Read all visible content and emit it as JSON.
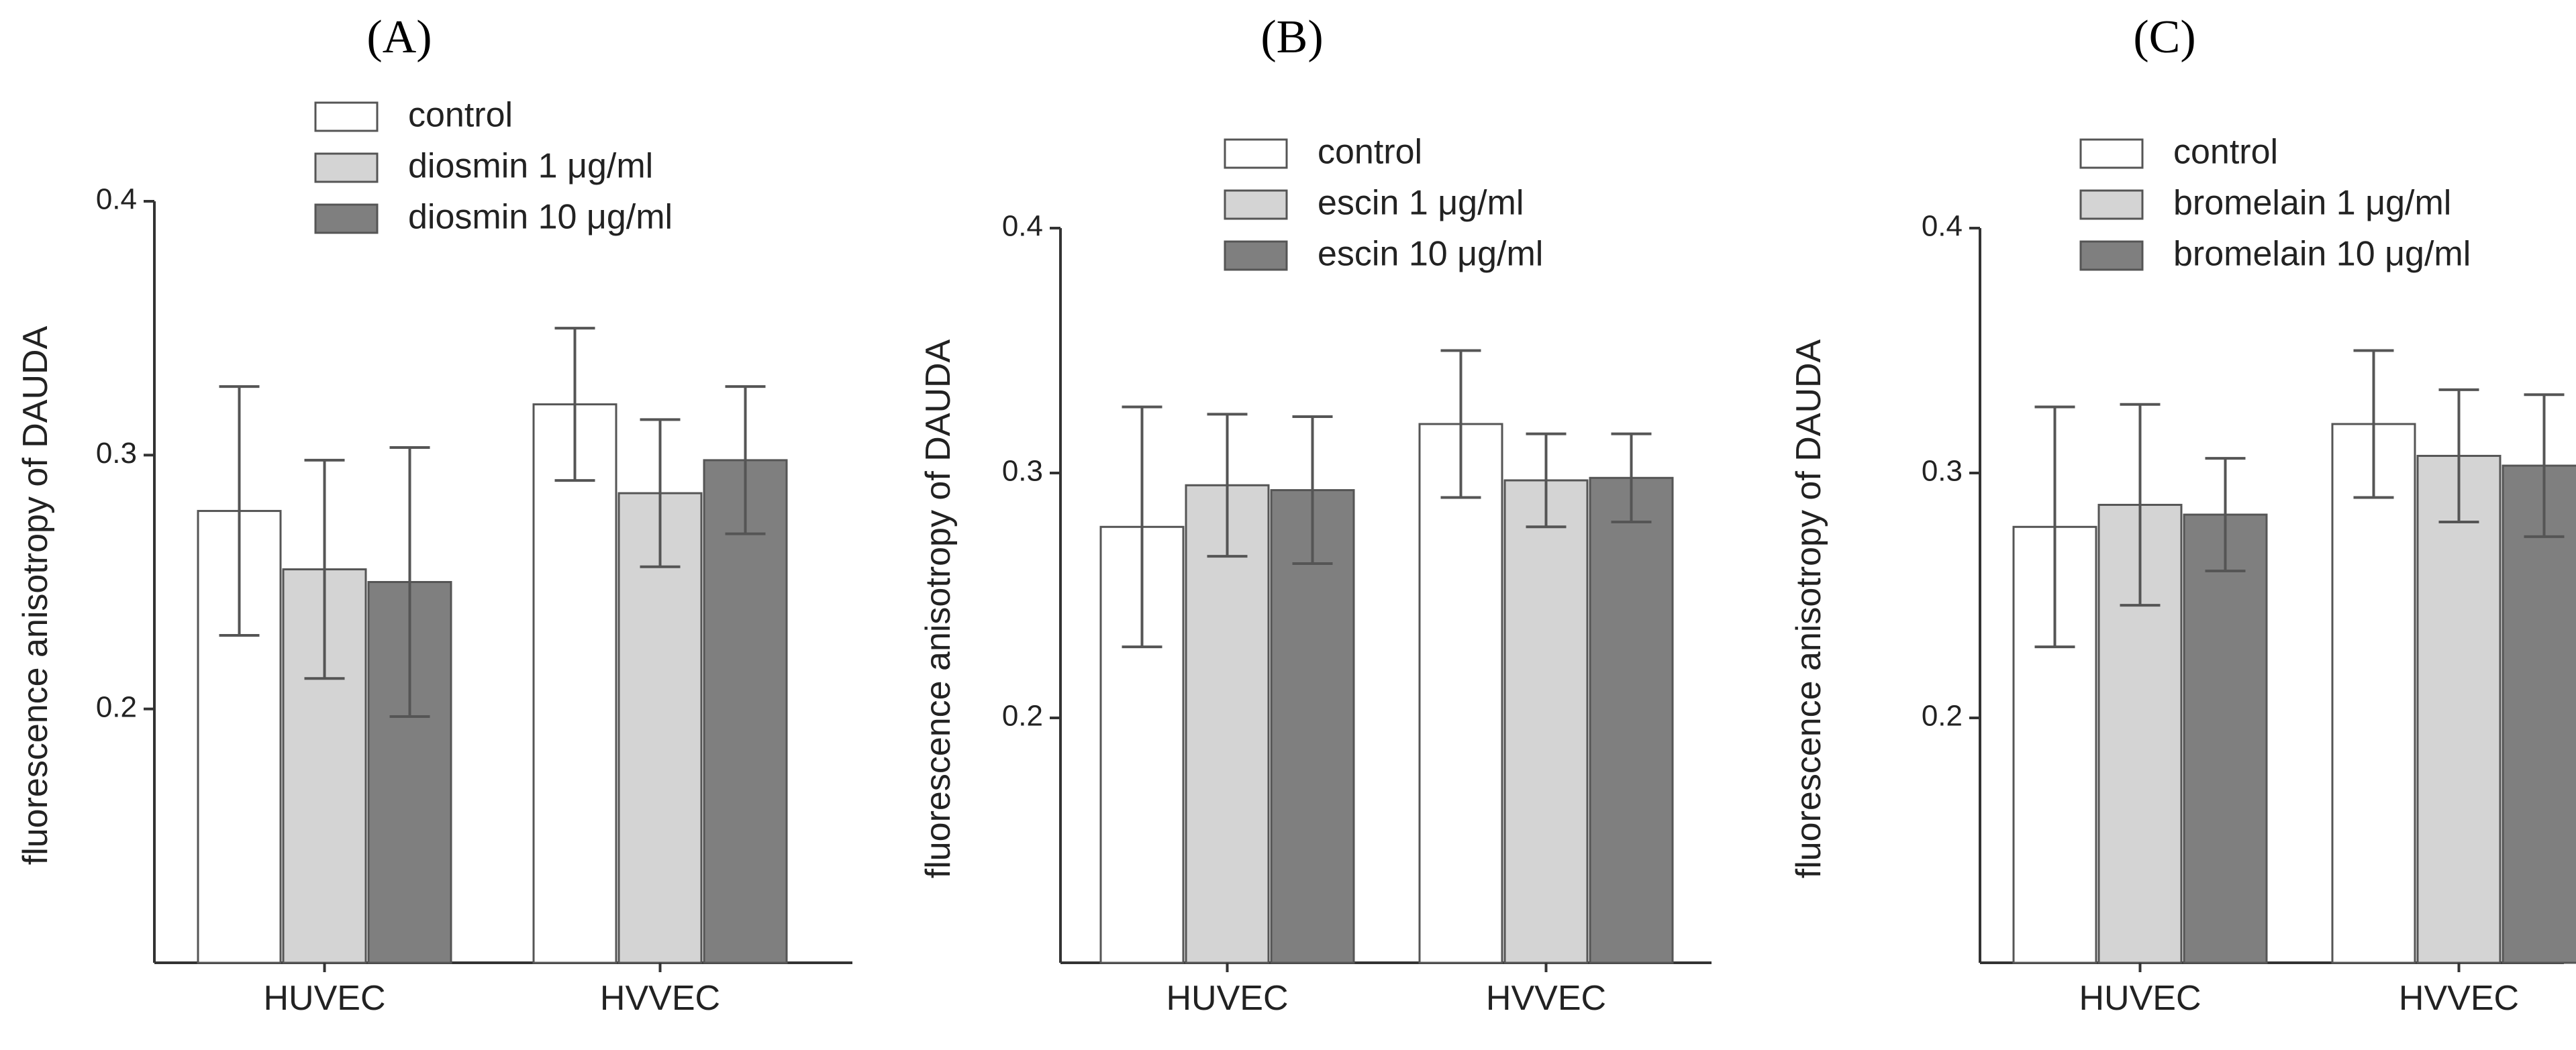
{
  "figure": {
    "colors": {
      "control": "#ffffff",
      "low_dose": "#d4d4d4",
      "high_dose": "#7f7f7f",
      "stroke": "#555555",
      "axis": "#333333"
    }
  },
  "chart_data": [
    {
      "type": "bar",
      "panel": "A",
      "title": "(A)",
      "ylabel": "fluorescence anisotropy of  DAUDA",
      "xlabel": "",
      "ylim": [
        0.1,
        0.4
      ],
      "yticks": [
        0.2,
        0.3,
        0.4
      ],
      "ytick_labels": [
        "0.2",
        "0.3",
        "0.4"
      ],
      "legend_position": "top-center",
      "categories": [
        "HUVEC",
        "HVVEC"
      ],
      "series": [
        {
          "name": "control",
          "values": [
            0.278,
            0.32
          ],
          "errors": [
            0.049,
            0.03
          ]
        },
        {
          "name": "diosmin 1 μg/ml",
          "values": [
            0.255,
            0.285
          ],
          "errors": [
            0.043,
            0.029
          ]
        },
        {
          "name": "diosmin 10 μg/ml",
          "values": [
            0.25,
            0.298
          ],
          "errors": [
            0.053,
            0.029
          ]
        }
      ]
    },
    {
      "type": "bar",
      "panel": "B",
      "title": "(B)",
      "ylabel": "fluorescence anisotropy of  DAUDA",
      "xlabel": "",
      "ylim": [
        0.1,
        0.4
      ],
      "yticks": [
        0.2,
        0.3,
        0.4
      ],
      "ytick_labels": [
        "0.2",
        "0.3",
        "0.4"
      ],
      "legend_position": "top-center",
      "categories": [
        "HUVEC",
        "HVVEC"
      ],
      "series": [
        {
          "name": "control",
          "values": [
            0.278,
            0.32
          ],
          "errors": [
            0.049,
            0.03
          ]
        },
        {
          "name": "escin 1 μg/ml",
          "values": [
            0.295,
            0.297
          ],
          "errors": [
            0.029,
            0.019
          ]
        },
        {
          "name": "escin 10 μg/ml",
          "values": [
            0.293,
            0.298
          ],
          "errors": [
            0.03,
            0.018
          ]
        }
      ]
    },
    {
      "type": "bar",
      "panel": "C",
      "title": "(C)",
      "ylabel": "fluorescence anisotropy of  DAUDA",
      "xlabel": "",
      "ylim": [
        0.1,
        0.4
      ],
      "yticks": [
        0.2,
        0.3,
        0.4
      ],
      "ytick_labels": [
        "0.2",
        "0.3",
        "0.4"
      ],
      "legend_position": "top-center",
      "categories": [
        "HUVEC",
        "HVVEC"
      ],
      "series": [
        {
          "name": "control",
          "values": [
            0.278,
            0.32
          ],
          "errors": [
            0.049,
            0.03
          ]
        },
        {
          "name": "bromelain 1 μg/ml",
          "values": [
            0.287,
            0.307
          ],
          "errors": [
            0.041,
            0.027
          ]
        },
        {
          "name": "bromelain 10 μg/ml",
          "values": [
            0.283,
            0.303
          ],
          "errors": [
            0.023,
            0.029
          ]
        }
      ]
    }
  ]
}
